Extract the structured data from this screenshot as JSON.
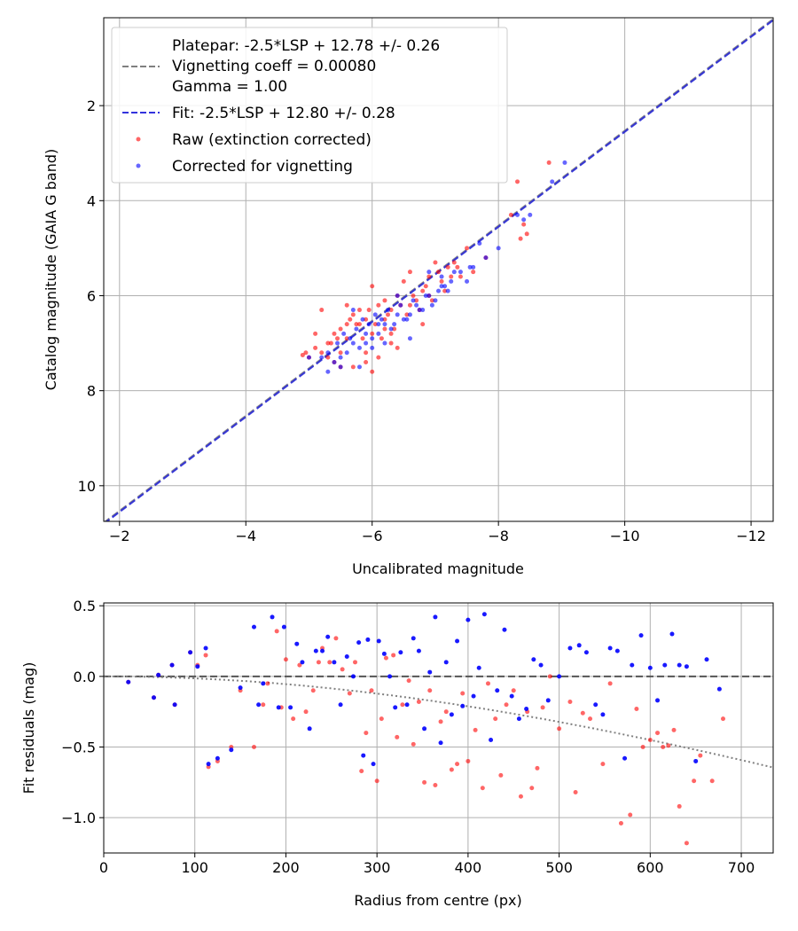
{
  "chart_data": [
    {
      "type": "scatter",
      "xlabel": "Uncalibrated magnitude",
      "ylabel": "Catalog magnitude (GAIA G band)",
      "xlim": [
        -1.75,
        -12.35
      ],
      "ylim": [
        10.75,
        0.15
      ],
      "x_inverted": true,
      "y_inverted": true,
      "xticks": [
        -2,
        -4,
        -6,
        -8,
        -10,
        -12
      ],
      "xtick_labels": [
        "−2",
        "−4",
        "−6",
        "−8",
        "−10",
        "−12"
      ],
      "yticks": [
        2,
        4,
        6,
        8,
        10
      ],
      "ytick_labels": [
        "2",
        "4",
        "6",
        "8",
        "10"
      ],
      "grid": true,
      "legend_position": "top-left",
      "legend": [
        {
          "label": "Platepar: -2.5*LSP + 12.78 +/- 0.26",
          "style": "none"
        },
        {
          "label": "Vignetting coeff = 0.00080",
          "style": "dashed",
          "color": "#808080"
        },
        {
          "label": "Gamma = 1.00",
          "style": "none"
        },
        {
          "label": "Fit: -2.5*LSP + 12.80 +/- 0.28",
          "style": "dashed",
          "color": "#3333dd"
        },
        {
          "label": "Raw (extinction corrected)",
          "style": "marker",
          "color": "#ff0000"
        },
        {
          "label": "Corrected for vignetting",
          "style": "marker",
          "color": "#0000ff"
        }
      ],
      "series": [
        {
          "name": "Platepar: -2.5*LSP + 12.78 +/- 0.26",
          "kind": "line",
          "style": "dashed",
          "color": "#808080",
          "x": [
            -1.75,
            -12.35
          ],
          "y": [
            10.78,
            0.18
          ]
        },
        {
          "name": "Fit: -2.5*LSP + 12.80 +/- 0.28",
          "kind": "line",
          "style": "dashed",
          "color": "#2b2bd6",
          "x": [
            -1.75,
            -12.35
          ],
          "y": [
            10.8,
            0.2
          ]
        },
        {
          "name": "Raw (extinction corrected)",
          "kind": "scatter",
          "color": "#ff0000",
          "x": [
            -8.8,
            -8.3,
            -8.2,
            -8.4,
            -8.35,
            -8.45,
            -7.5,
            -7.3,
            -7.2,
            -7.4,
            -7.1,
            -7.0,
            -6.9,
            -6.8,
            -6.7,
            -6.6,
            -6.5,
            -6.4,
            -6.3,
            -6.2,
            -6.1,
            -6.0,
            -5.9,
            -5.8,
            -5.7,
            -5.6,
            -5.5,
            -5.4,
            -5.3,
            -5.2,
            -5.1,
            -5.0,
            -4.9,
            -5.35,
            -5.45,
            -5.65,
            -5.75,
            -5.85,
            -5.95,
            -6.05,
            -6.15,
            -6.25,
            -6.35,
            -6.45,
            -6.55,
            -6.65,
            -6.75,
            -6.85,
            -6.95,
            -7.05,
            -7.15,
            -7.25,
            -7.35,
            -5.5,
            -5.9,
            -6.1,
            -6.3,
            -5.2,
            -5.6,
            -5.8,
            -6.0,
            -6.2,
            -5.4,
            -5.7,
            -6.0,
            -6.4,
            -6.8,
            -7.6,
            -6.6,
            -6.9,
            -6.3,
            -5.3,
            -5.6,
            -5.9,
            -6.2,
            -5.5,
            -5.1,
            -4.95,
            -7.8
          ],
          "y": [
            3.2,
            3.6,
            4.3,
            4.5,
            4.8,
            4.7,
            5.0,
            5.3,
            5.4,
            5.6,
            5.7,
            5.3,
            5.6,
            5.9,
            6.1,
            5.5,
            5.7,
            6.0,
            6.3,
            6.1,
            6.2,
            5.8,
            6.5,
            6.3,
            6.4,
            6.6,
            6.7,
            6.8,
            7.0,
            7.2,
            7.1,
            7.3,
            7.25,
            7.0,
            6.9,
            6.5,
            6.6,
            6.9,
            6.3,
            6.6,
            6.9,
            6.4,
            6.7,
            6.2,
            6.4,
            6.0,
            6.3,
            5.8,
            6.1,
            5.5,
            5.9,
            5.6,
            5.4,
            7.2,
            7.4,
            7.3,
            7.0,
            6.3,
            6.2,
            6.6,
            6.8,
            6.5,
            7.4,
            7.5,
            7.6,
            7.1,
            6.6,
            5.5,
            6.2,
            6.0,
            6.8,
            7.3,
            6.9,
            7.2,
            6.7,
            7.5,
            6.8,
            7.2,
            5.2
          ]
        },
        {
          "name": "Corrected for vignetting",
          "kind": "scatter",
          "color": "#0000ff",
          "x": [
            -9.05,
            -8.85,
            -8.5,
            -8.4,
            -8.3,
            -8.0,
            -7.8,
            -7.7,
            -7.6,
            -7.5,
            -7.3,
            -7.2,
            -7.1,
            -7.0,
            -6.9,
            -6.8,
            -6.7,
            -6.6,
            -6.5,
            -6.4,
            -6.3,
            -6.2,
            -6.1,
            -6.0,
            -5.9,
            -5.8,
            -5.7,
            -5.6,
            -5.5,
            -5.4,
            -5.3,
            -5.2,
            -5.0,
            -5.45,
            -5.55,
            -5.65,
            -5.75,
            -5.85,
            -5.95,
            -6.05,
            -6.15,
            -6.25,
            -6.35,
            -6.45,
            -6.55,
            -6.65,
            -6.75,
            -6.85,
            -6.95,
            -7.05,
            -7.15,
            -7.25,
            -7.4,
            -7.55,
            -6.6,
            -6.0,
            -5.8,
            -6.2,
            -5.5,
            -5.7,
            -6.4,
            -6.9,
            -7.1,
            -5.3,
            -5.9,
            -6.1
          ],
          "y": [
            3.2,
            3.6,
            4.3,
            4.4,
            4.3,
            5.0,
            5.2,
            4.9,
            5.4,
            5.7,
            5.5,
            5.9,
            5.8,
            6.1,
            6.0,
            6.3,
            6.2,
            6.4,
            6.5,
            6.4,
            6.7,
            6.6,
            6.8,
            6.9,
            7.0,
            7.1,
            7.0,
            7.2,
            7.3,
            7.4,
            7.2,
            7.3,
            7.3,
            7.0,
            6.8,
            6.9,
            6.7,
            6.5,
            6.6,
            6.4,
            6.5,
            6.3,
            6.6,
            6.2,
            6.5,
            6.1,
            6.3,
            6.0,
            6.2,
            5.9,
            5.8,
            5.7,
            5.5,
            5.4,
            6.9,
            7.1,
            7.5,
            7.0,
            7.5,
            6.3,
            6.0,
            5.5,
            5.6,
            7.6,
            6.8,
            6.6
          ]
        }
      ]
    },
    {
      "type": "scatter",
      "xlabel": "Radius from centre (px)",
      "ylabel": "Fit residuals (mag)",
      "xlim": [
        0,
        735
      ],
      "ylim": [
        -1.25,
        0.52
      ],
      "xticks": [
        0,
        100,
        200,
        300,
        400,
        500,
        600,
        700
      ],
      "xtick_labels": [
        "0",
        "100",
        "200",
        "300",
        "400",
        "500",
        "600",
        "700"
      ],
      "yticks": [
        0.5,
        0.0,
        -0.5,
        -1.0
      ],
      "ytick_labels": [
        "0.5",
        "0.0",
        "−0.5",
        "−1.0"
      ],
      "grid": true,
      "series": [
        {
          "name": "zero",
          "kind": "line",
          "style": "dashed",
          "color": "#555555",
          "x": [
            0,
            735
          ],
          "y": [
            0,
            0
          ]
        },
        {
          "name": "vignetting model",
          "kind": "curve",
          "style": "dotted",
          "color": "#808080"
        },
        {
          "name": "Raw (extinction corrected)",
          "kind": "scatter",
          "color": "#ff0000",
          "x": [
            27,
            55,
            60,
            75,
            78,
            95,
            103,
            112,
            115,
            125,
            140,
            150,
            165,
            175,
            180,
            190,
            195,
            200,
            208,
            215,
            222,
            230,
            236,
            240,
            248,
            255,
            262,
            270,
            276,
            283,
            288,
            294,
            300,
            305,
            310,
            318,
            322,
            328,
            335,
            340,
            346,
            352,
            358,
            364,
            370,
            376,
            382,
            388,
            394,
            400,
            408,
            416,
            422,
            430,
            436,
            442,
            450,
            458,
            465,
            470,
            476,
            482,
            490,
            500,
            512,
            518,
            526,
            534,
            548,
            556,
            568,
            578,
            585,
            592,
            600,
            608,
            614,
            620,
            626,
            632,
            640,
            648,
            655,
            668,
            680
          ],
          "y": [
            -0.04,
            -0.15,
            0.01,
            0.08,
            -0.2,
            0.17,
            0.08,
            0.15,
            -0.64,
            -0.6,
            -0.5,
            -0.1,
            -0.5,
            -0.2,
            -0.05,
            0.32,
            -0.22,
            0.12,
            -0.3,
            0.08,
            -0.25,
            -0.1,
            0.1,
            0.2,
            0.1,
            0.27,
            0.05,
            -0.12,
            0.1,
            -0.67,
            -0.4,
            -0.1,
            -0.74,
            -0.3,
            0.13,
            0.15,
            -0.43,
            -0.2,
            -0.03,
            -0.48,
            -0.18,
            -0.75,
            -0.1,
            -0.77,
            -0.32,
            -0.25,
            -0.66,
            -0.62,
            -0.12,
            -0.6,
            -0.38,
            -0.79,
            -0.05,
            -0.3,
            -0.7,
            -0.2,
            -0.1,
            -0.85,
            -0.25,
            -0.79,
            -0.65,
            -0.22,
            0.0,
            -0.37,
            -0.18,
            -0.82,
            -0.26,
            -0.3,
            -0.62,
            -0.05,
            -1.04,
            -0.98,
            -0.23,
            -0.5,
            -0.45,
            -0.4,
            -0.5,
            -0.49,
            -0.38,
            -0.92,
            -1.18,
            -0.74,
            -0.56,
            -0.74,
            -0.3
          ]
        },
        {
          "name": "Corrected for vignetting",
          "kind": "scatter",
          "color": "#0000ff",
          "x": [
            27,
            55,
            60,
            75,
            78,
            95,
            103,
            112,
            115,
            125,
            140,
            150,
            165,
            170,
            175,
            185,
            192,
            198,
            205,
            212,
            218,
            226,
            233,
            240,
            246,
            253,
            260,
            267,
            274,
            280,
            285,
            290,
            296,
            302,
            308,
            314,
            320,
            326,
            333,
            340,
            346,
            352,
            358,
            364,
            370,
            376,
            382,
            388,
            394,
            400,
            406,
            412,
            418,
            425,
            432,
            440,
            448,
            456,
            464,
            472,
            480,
            488,
            500,
            512,
            522,
            530,
            540,
            548,
            556,
            564,
            572,
            580,
            590,
            600,
            608,
            616,
            624,
            632,
            640,
            650,
            662,
            676
          ],
          "y": [
            -0.04,
            -0.15,
            0.01,
            0.08,
            -0.2,
            0.17,
            0.07,
            0.2,
            -0.62,
            -0.58,
            -0.52,
            -0.08,
            0.35,
            -0.2,
            -0.05,
            0.42,
            -0.22,
            0.35,
            -0.22,
            0.23,
            0.1,
            -0.37,
            0.18,
            0.18,
            0.28,
            0.1,
            -0.2,
            0.14,
            0.0,
            0.24,
            -0.56,
            0.26,
            -0.62,
            0.25,
            0.16,
            0.0,
            -0.22,
            0.17,
            -0.2,
            0.27,
            0.18,
            -0.37,
            0.03,
            0.42,
            -0.47,
            0.1,
            -0.27,
            0.25,
            -0.21,
            0.4,
            -0.14,
            0.06,
            0.44,
            -0.45,
            -0.1,
            0.33,
            -0.14,
            -0.3,
            -0.23,
            0.12,
            0.08,
            -0.17,
            0.0,
            0.2,
            0.22,
            0.17,
            -0.2,
            -0.27,
            0.2,
            0.18,
            -0.58,
            0.08,
            0.29,
            0.06,
            -0.17,
            0.08,
            0.3,
            0.08,
            0.07,
            -0.6,
            0.12,
            -0.09
          ]
        }
      ]
    }
  ]
}
